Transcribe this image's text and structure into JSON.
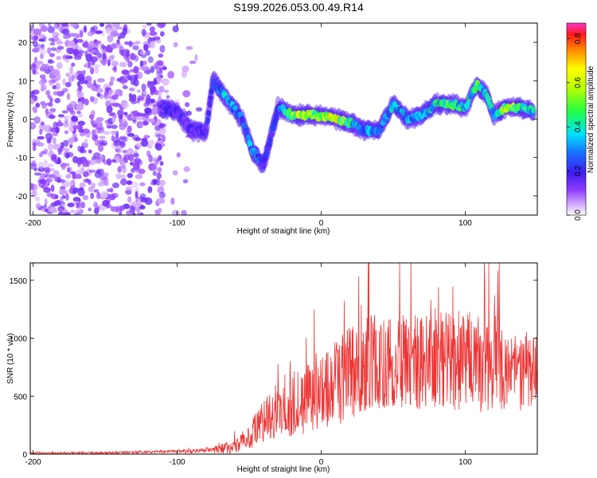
{
  "title": "S199.2026.053.00.49.R14",
  "chart_data": [
    {
      "type": "heatmap",
      "xlabel": "Height of straight line (km)",
      "ylabel": "Frequency (Hz)",
      "xlim": [
        -202,
        150
      ],
      "ylim": [
        -25,
        25
      ],
      "x_ticks": [
        -200,
        -100,
        0,
        100
      ],
      "x_tick_labels": [
        "-200",
        "-100",
        "0",
        "100"
      ],
      "y_ticks": [
        -20,
        -10,
        0,
        10,
        20
      ],
      "y_tick_labels": [
        "-20",
        "-10",
        "0",
        "10",
        "20"
      ],
      "colorbar": {
        "label": "Normalized spectral amplitude",
        "range": [
          0,
          0.87
        ],
        "ticks": [
          0.0,
          0.2,
          0.4,
          0.6,
          0.8
        ],
        "tick_labels": [
          "0.0",
          "0.2",
          "0.4",
          "0.6",
          "0.8"
        ]
      },
      "ridge_track": [
        {
          "x": -112,
          "f": 3,
          "a": 0.2
        },
        {
          "x": -100,
          "f": 2,
          "a": 0.2
        },
        {
          "x": -90,
          "f": -3,
          "a": 0.2
        },
        {
          "x": -80,
          "f": -3,
          "a": 0.2
        },
        {
          "x": -75,
          "f": 10,
          "a": 0.25
        },
        {
          "x": -65,
          "f": 5,
          "a": 0.4
        },
        {
          "x": -55,
          "f": 0,
          "a": 0.3
        },
        {
          "x": -48,
          "f": -8,
          "a": 0.35
        },
        {
          "x": -40,
          "f": -12,
          "a": 0.2
        },
        {
          "x": -30,
          "f": 3,
          "a": 0.25
        },
        {
          "x": -20,
          "f": 1,
          "a": 0.65
        },
        {
          "x": -10,
          "f": 1,
          "a": 0.6
        },
        {
          "x": 0,
          "f": 1,
          "a": 0.65
        },
        {
          "x": 10,
          "f": 0,
          "a": 0.75
        },
        {
          "x": 20,
          "f": -1,
          "a": 0.5
        },
        {
          "x": 30,
          "f": -3,
          "a": 0.35
        },
        {
          "x": 40,
          "f": -3,
          "a": 0.35
        },
        {
          "x": 50,
          "f": 4,
          "a": 0.4
        },
        {
          "x": 60,
          "f": 0,
          "a": 0.4
        },
        {
          "x": 70,
          "f": 1,
          "a": 0.35
        },
        {
          "x": 80,
          "f": 4,
          "a": 0.45
        },
        {
          "x": 90,
          "f": 4,
          "a": 0.55
        },
        {
          "x": 100,
          "f": 3,
          "a": 0.4
        },
        {
          "x": 108,
          "f": 9,
          "a": 0.5
        },
        {
          "x": 115,
          "f": 6,
          "a": 0.45
        },
        {
          "x": 120,
          "f": 1,
          "a": 0.4
        },
        {
          "x": 128,
          "f": 3,
          "a": 0.75
        },
        {
          "x": 138,
          "f": 3,
          "a": 0.5
        },
        {
          "x": 148,
          "f": 2,
          "a": 0.4
        }
      ],
      "noise_region": {
        "x_range": [
          -202,
          -110
        ],
        "f_range": [
          -25,
          25
        ],
        "amplitude": 0.12
      }
    },
    {
      "type": "line",
      "xlabel": "Height of straight line (km)",
      "ylabel": "SNR (10 * v/v)",
      "xlim": [
        -202,
        150
      ],
      "ylim": [
        0,
        1650
      ],
      "x_ticks": [
        -200,
        -100,
        0,
        100
      ],
      "x_tick_labels": [
        "-200",
        "-100",
        "0",
        "100"
      ],
      "y_ticks": [
        0,
        500,
        1000,
        1500
      ],
      "y_tick_labels": [
        "0",
        "500",
        "1000",
        "1500"
      ],
      "series": [
        {
          "name": "SNR",
          "color": "#ee3333",
          "envelope": {
            "x": [
              -202,
              -150,
              -110,
              -80,
              -60,
              -50,
              -40,
              -30,
              -20,
              -10,
              0,
              10,
              20,
              30,
              40,
              50,
              60,
              70,
              80,
              90,
              100,
              110,
              120,
              130,
              140,
              150
            ],
            "mean": [
              10,
              12,
              20,
              30,
              60,
              150,
              280,
              400,
              450,
              500,
              560,
              620,
              700,
              760,
              800,
              820,
              780,
              800,
              850,
              800,
              820,
              780,
              800,
              720,
              700,
              740
            ],
            "spread": [
              6,
              8,
              12,
              20,
              60,
              120,
              180,
              250,
              300,
              330,
              350,
              380,
              400,
              420,
              430,
              430,
              420,
              430,
              440,
              430,
              440,
              420,
              420,
              360,
              320,
              300
            ]
          }
        }
      ]
    }
  ]
}
